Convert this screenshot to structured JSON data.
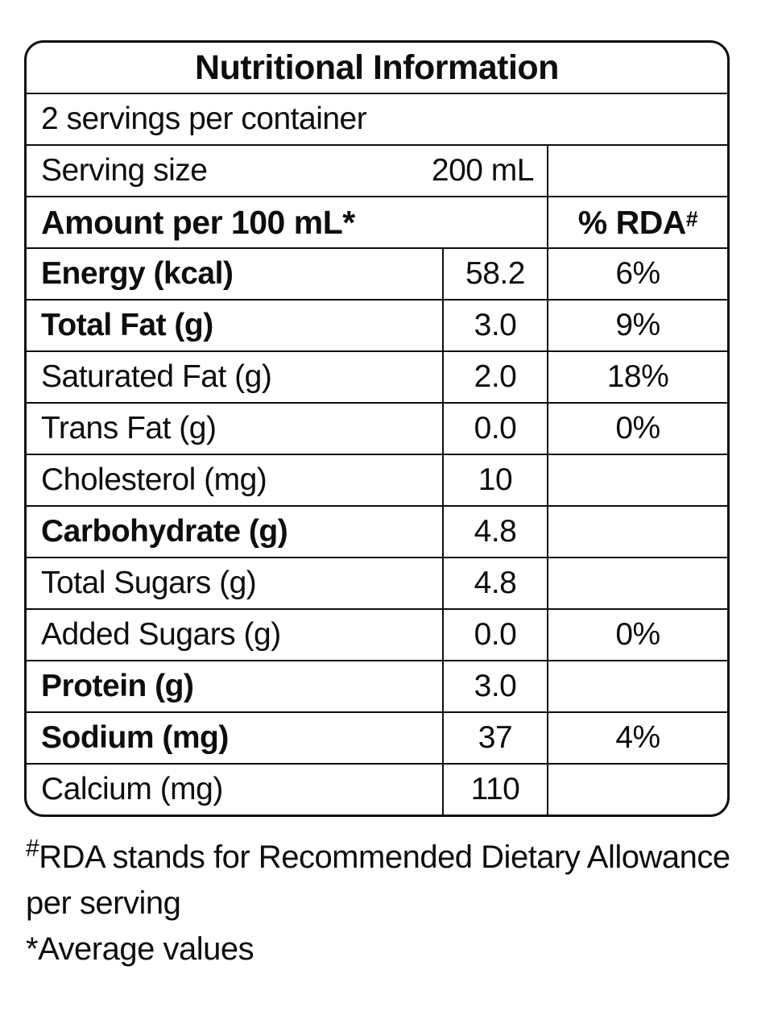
{
  "colors": {
    "text": "#0e0e0e",
    "border": "#0e0e0e",
    "background": "#ffffff"
  },
  "table": {
    "title": "Nutritional Information",
    "servings_per_container": "2 servings per container",
    "serving_size_label": "Serving size",
    "serving_size_value": "200 mL",
    "header": {
      "amount_label": "Amount per 100 mL",
      "amount_marker": "*",
      "rda_label": "% RDA",
      "rda_marker": "#"
    },
    "rows": [
      {
        "label": "Energy (kcal)",
        "value": "58.2",
        "rda": "6%",
        "bold": true
      },
      {
        "label": "Total Fat (g)",
        "value": "3.0",
        "rda": "9%",
        "bold": true
      },
      {
        "label": "Saturated Fat (g)",
        "value": "2.0",
        "rda": "18%",
        "bold": false
      },
      {
        "label": "Trans Fat (g)",
        "value": "0.0",
        "rda": "0%",
        "bold": false
      },
      {
        "label": "Cholesterol (mg)",
        "value": "10",
        "rda": "",
        "bold": false
      },
      {
        "label": "Carbohydrate (g)",
        "value": "4.8",
        "rda": "",
        "bold": true
      },
      {
        "label": "Total Sugars (g)",
        "value": "4.8",
        "rda": "",
        "bold": false
      },
      {
        "label": "Added Sugars (g)",
        "value": "0.0",
        "rda": "0%",
        "bold": false
      },
      {
        "label": "Protein (g)",
        "value": "3.0",
        "rda": "",
        "bold": true
      },
      {
        "label": "Sodium (mg)",
        "value": "37",
        "rda": "4%",
        "bold": true
      },
      {
        "label": "Calcium (mg)",
        "value": "110",
        "rda": "",
        "bold": false
      }
    ]
  },
  "footnotes": {
    "rda_note_marker": "#",
    "rda_note": "RDA stands for Recommended Dietary Allowance per serving",
    "average_note_marker": "*",
    "average_note": "Average values"
  }
}
